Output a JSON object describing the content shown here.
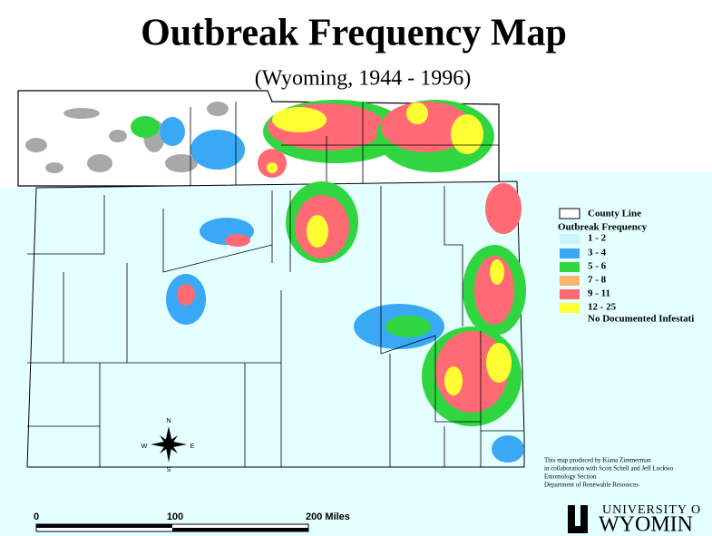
{
  "header": {
    "title": "Outbreak Frequency Map",
    "subtitle": "(Wyoming, 1944 - 1996)"
  },
  "legend": {
    "county_line": "County Line",
    "heading": "Outbreak Frequency",
    "items": [
      {
        "label": "1 - 2",
        "color": "#c8f4ff"
      },
      {
        "label": "3 - 4",
        "color": "#39a9f5"
      },
      {
        "label": "5 - 6",
        "color": "#2fd63f"
      },
      {
        "label": "7 - 8",
        "color": "#ffb36b"
      },
      {
        "label": "9 - 11",
        "color": "#ff6a74"
      },
      {
        "label": "12 - 25",
        "color": "#ffff33"
      },
      {
        "label": "No Documented Infestati",
        "color": "#e4ffff"
      }
    ]
  },
  "compass": {
    "n": "N",
    "s": "S",
    "e": "E",
    "w": "W"
  },
  "scale": {
    "labels": [
      "0",
      "100",
      "200  Miles"
    ]
  },
  "credits": [
    "This map produced by Kiana Zimmerman",
    "in collaboration with Scott Schell and Jeff Lockwo",
    "Entomology Section",
    "Department of Renewable Resources"
  ],
  "logo": {
    "line1": "UNIVERSITY O",
    "line2": "WYOMIN"
  }
}
